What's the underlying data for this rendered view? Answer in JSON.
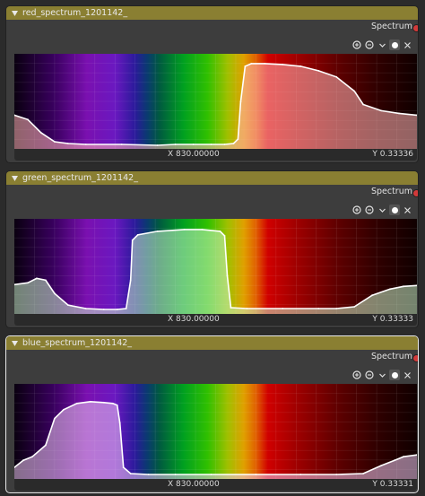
{
  "nodes": [
    {
      "title": "red_spectrum_1201142_",
      "output_label": "Spectrum",
      "x_readout": "X 830.00000",
      "y_readout": "Y 0.33336",
      "curve_points": [
        [
          380,
          0.35
        ],
        [
          395,
          0.3
        ],
        [
          410,
          0.15
        ],
        [
          425,
          0.05
        ],
        [
          440,
          0.03
        ],
        [
          460,
          0.02
        ],
        [
          500,
          0.02
        ],
        [
          540,
          0.01
        ],
        [
          560,
          0.02
        ],
        [
          580,
          0.02
        ],
        [
          600,
          0.02
        ],
        [
          615,
          0.02
        ],
        [
          625,
          0.03
        ],
        [
          630,
          0.08
        ],
        [
          633,
          0.5
        ],
        [
          638,
          0.9
        ],
        [
          645,
          0.93
        ],
        [
          660,
          0.93
        ],
        [
          680,
          0.92
        ],
        [
          700,
          0.9
        ],
        [
          720,
          0.85
        ],
        [
          740,
          0.78
        ],
        [
          760,
          0.62
        ],
        [
          770,
          0.47
        ],
        [
          790,
          0.4
        ],
        [
          810,
          0.37
        ],
        [
          830,
          0.35
        ]
      ],
      "fill_color": "#ffb4b4",
      "selected": false
    },
    {
      "title": "green_spectrum_1201142_",
      "output_label": "Spectrum",
      "x_readout": "X 830.00000",
      "y_readout": "Y 0.33333",
      "curve_points": [
        [
          380,
          0.3
        ],
        [
          395,
          0.32
        ],
        [
          405,
          0.37
        ],
        [
          415,
          0.35
        ],
        [
          425,
          0.2
        ],
        [
          440,
          0.07
        ],
        [
          460,
          0.03
        ],
        [
          480,
          0.02
        ],
        [
          495,
          0.02
        ],
        [
          505,
          0.03
        ],
        [
          510,
          0.35
        ],
        [
          512,
          0.8
        ],
        [
          518,
          0.86
        ],
        [
          540,
          0.9
        ],
        [
          570,
          0.92
        ],
        [
          590,
          0.92
        ],
        [
          610,
          0.9
        ],
        [
          615,
          0.85
        ],
        [
          618,
          0.4
        ],
        [
          622,
          0.04
        ],
        [
          640,
          0.03
        ],
        [
          680,
          0.03
        ],
        [
          720,
          0.03
        ],
        [
          740,
          0.03
        ],
        [
          760,
          0.05
        ],
        [
          780,
          0.18
        ],
        [
          800,
          0.25
        ],
        [
          815,
          0.28
        ],
        [
          830,
          0.29
        ]
      ],
      "fill_color": "#c8f0c8",
      "selected": false
    },
    {
      "title": "blue_spectrum_1201142_",
      "output_label": "Spectrum",
      "x_readout": "X 830.00000",
      "y_readout": "Y 0.33331",
      "curve_points": [
        [
          380,
          0.1
        ],
        [
          390,
          0.18
        ],
        [
          400,
          0.22
        ],
        [
          415,
          0.35
        ],
        [
          425,
          0.65
        ],
        [
          435,
          0.75
        ],
        [
          450,
          0.82
        ],
        [
          465,
          0.84
        ],
        [
          480,
          0.83
        ],
        [
          490,
          0.82
        ],
        [
          495,
          0.8
        ],
        [
          498,
          0.6
        ],
        [
          502,
          0.1
        ],
        [
          510,
          0.03
        ],
        [
          530,
          0.02
        ],
        [
          560,
          0.02
        ],
        [
          600,
          0.02
        ],
        [
          650,
          0.02
        ],
        [
          700,
          0.02
        ],
        [
          740,
          0.02
        ],
        [
          770,
          0.03
        ],
        [
          790,
          0.12
        ],
        [
          805,
          0.18
        ],
        [
          815,
          0.22
        ],
        [
          830,
          0.24
        ]
      ],
      "fill_color": "#ecc8f0",
      "selected": true
    }
  ],
  "toolbar": {
    "zoom_in_icon": "zoom-in-icon",
    "zoom_out_icon": "zoom-out-icon",
    "dropdown_icon": "chevron-down-icon",
    "clip_icon": "clip-toggle-icon",
    "delete_icon": "close-icon"
  },
  "x_range": [
    380,
    830
  ],
  "y_range": [
    0,
    1
  ],
  "colors": {
    "node_header": "#8a7f32",
    "node_body": "#3d3d3d",
    "socket": "#d23a3a",
    "curve_line": "#ffffff"
  }
}
